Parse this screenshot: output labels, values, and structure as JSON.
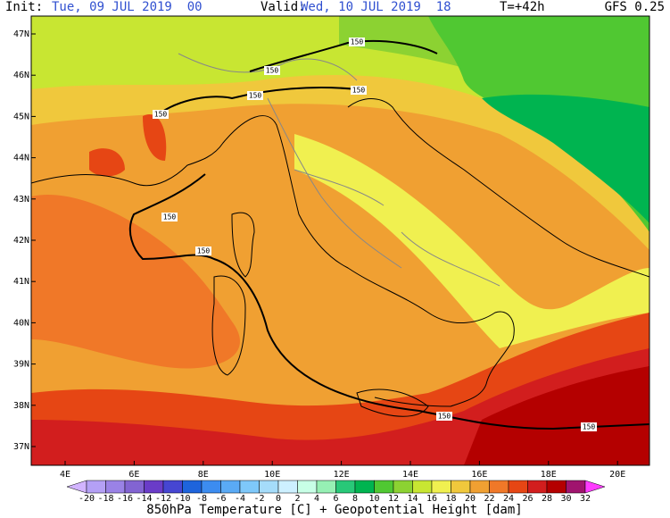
{
  "header": {
    "init_label": "Init:",
    "init": "Tue, 09 JUL 2019  00",
    "valid_label": "Valid:",
    "valid": "Wed, 10 JUL 2019  18",
    "lead": "T=+42h",
    "model": "GFS 0.25"
  },
  "latitudes": [
    "47N",
    "46N",
    "45N",
    "44N",
    "43N",
    "42N",
    "41N",
    "40N",
    "39N",
    "38N",
    "37N"
  ],
  "longitudes": [
    "4E",
    "6E",
    "8E",
    "10E",
    "12E",
    "14E",
    "16E",
    "18E",
    "20E"
  ],
  "contour_labels": [
    "150",
    "150",
    "150",
    "150",
    "150",
    "150",
    "150",
    "150",
    "150"
  ],
  "colorbar": {
    "labels": [
      -20,
      -18,
      -16,
      -14,
      -12,
      -10,
      -8,
      -6,
      -4,
      -2,
      0,
      2,
      4,
      6,
      8,
      10,
      12,
      14,
      16,
      18,
      20,
      22,
      24,
      26,
      28,
      30,
      32
    ],
    "colors": [
      "#d2b4ff",
      "#b4a0f5",
      "#9a82e6",
      "#8264d2",
      "#6a3cc8",
      "#4646d2",
      "#1e64dc",
      "#3c8cf0",
      "#5aaaf5",
      "#7ec8fa",
      "#a5dcfa",
      "#cdf0ff",
      "#c8ffe6",
      "#96f0b4",
      "#28c878",
      "#00b450",
      "#50c832",
      "#8cd232",
      "#c8e632",
      "#f0f050",
      "#f0c83c",
      "#f0a032",
      "#f07828",
      "#e64614",
      "#d21e1e",
      "#b40000",
      "#a0146e",
      "#ff3cff"
    ]
  },
  "footer": "850hPa Temperature [C] + Geopotential Height [dam]"
}
